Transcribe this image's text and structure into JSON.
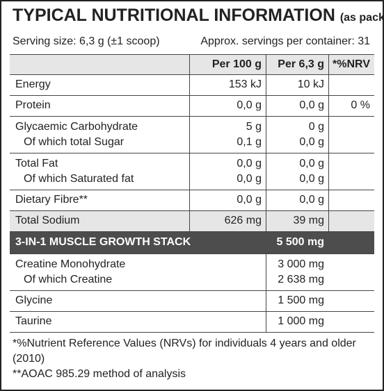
{
  "header": {
    "title": "TYPICAL NUTRITIONAL INFORMATION",
    "title_note": "(as packed)",
    "serving_size": "Serving size: 6,3 g (±1 scoop)",
    "servings": "Approx. servings per container: 31"
  },
  "table": {
    "columns": [
      "Per 100 g",
      "Per 6,3 g",
      "*%NRV"
    ],
    "rows": [
      {
        "label": [
          "Energy"
        ],
        "per_100g": [
          "153 kJ"
        ],
        "per_serving": [
          "10 kJ"
        ]
      },
      {
        "label": [
          "Protein"
        ],
        "per_100g": [
          "0,0 g"
        ],
        "per_serving": [
          "0,0 g"
        ],
        "nrv": [
          "0 %"
        ]
      },
      {
        "label": [
          "Glycaemic Carbohydrate",
          "Of which total Sugar"
        ],
        "per_100g": [
          "5 g",
          "0,1 g"
        ],
        "per_serving": [
          "0 g",
          "0,0 g"
        ]
      },
      {
        "label": [
          "Total Fat",
          "Of which Saturated fat"
        ],
        "per_100g": [
          "0,0 g",
          "0,0 g"
        ],
        "per_serving": [
          "0,0 g",
          "0,0 g"
        ]
      },
      {
        "label": [
          "Dietary Fibre**"
        ],
        "per_100g": [
          "0,0 g"
        ],
        "per_serving": [
          "0,0 g"
        ]
      },
      {
        "label": [
          "Total Sodium"
        ],
        "per_100g": [
          "626 mg"
        ],
        "per_serving": [
          "39 mg"
        ]
      }
    ]
  },
  "stack": {
    "title": "3-IN-1 MUSCLE GROWTH STACK",
    "amount": "5 500 mg",
    "rows": [
      {
        "label": [
          "Creatine Monohydrate",
          "Of which Creatine"
        ],
        "amount": [
          "3 000 mg",
          "2 638 mg"
        ]
      },
      {
        "label": [
          "Glycine"
        ],
        "amount": [
          "1 500 mg"
        ]
      },
      {
        "label": [
          "Taurine"
        ],
        "amount": [
          "1 000 mg"
        ]
      }
    ]
  },
  "footnotes": [
    "*%Nutrient Reference Values (NRVs) for individuals 4 years and older (2010)",
    "**AOAC 985.29 method of analysis"
  ]
}
